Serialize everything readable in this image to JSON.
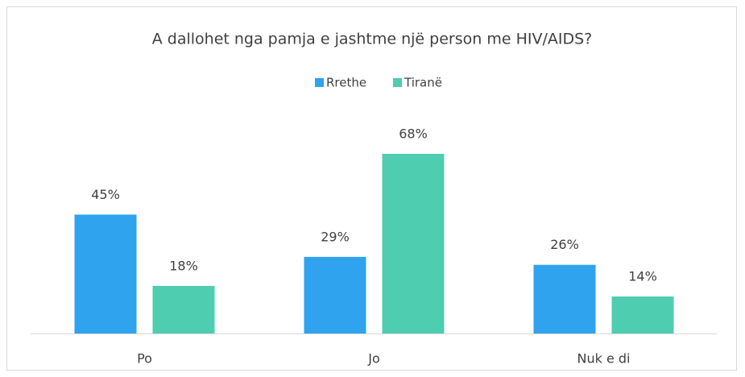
{
  "chart_data": {
    "type": "bar",
    "title": "A dallohet nga pamja e jashtme një person me HIV/AIDS?",
    "categories": [
      "Po",
      "Jo",
      "Nuk e di"
    ],
    "series": [
      {
        "name": "Rrethe",
        "color": "#2fa3ee",
        "values": [
          45,
          29,
          26
        ],
        "value_labels": [
          "45%",
          "29%",
          "26%"
        ]
      },
      {
        "name": "Tiranë",
        "color": "#4ecdb0",
        "values": [
          18,
          68,
          14
        ],
        "value_labels": [
          "18%",
          "68%",
          "14%"
        ]
      }
    ],
    "legend": "top"
  }
}
